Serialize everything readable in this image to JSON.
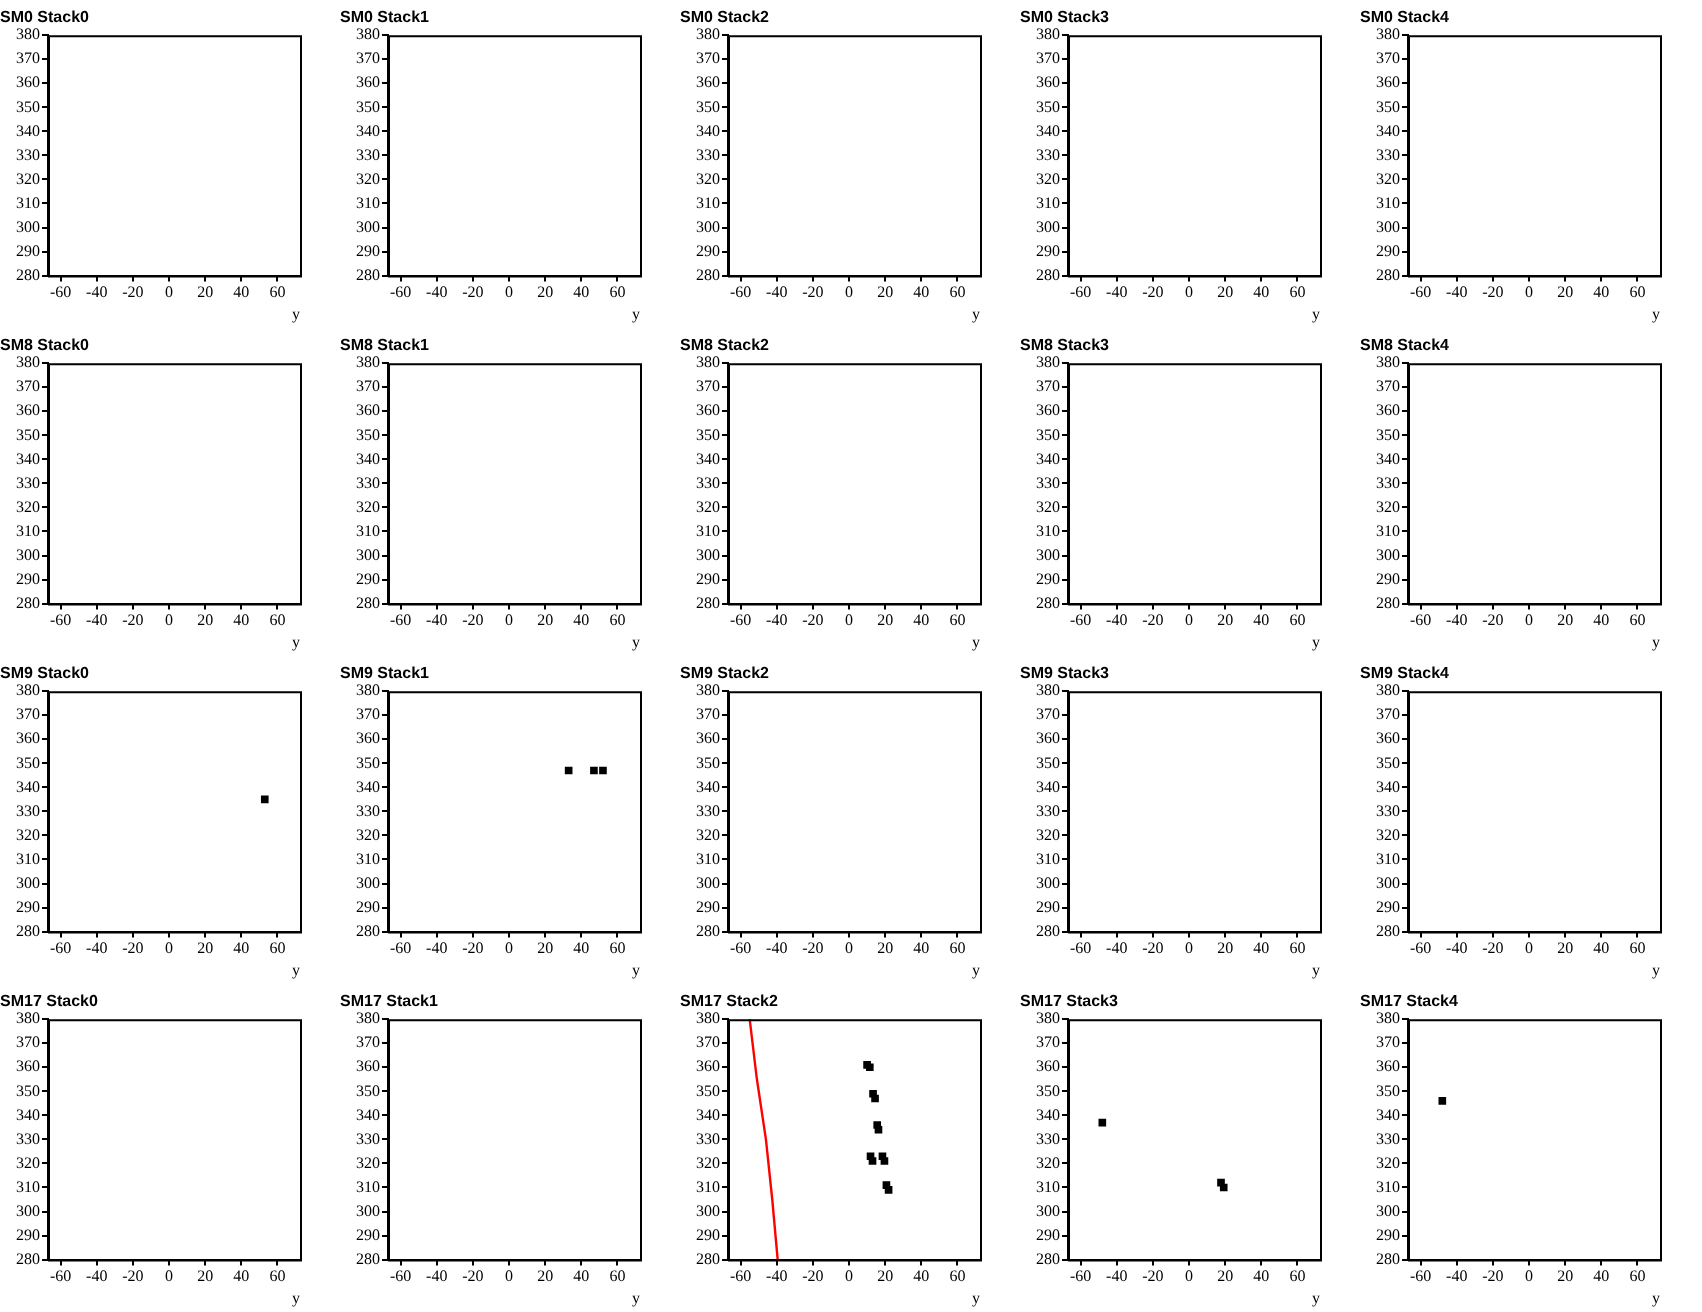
{
  "chart_data": [
    {
      "type": "scatter",
      "title": "SM0 Stack0",
      "xlabel": "y",
      "xlim": [
        -67,
        72.5
      ],
      "xticks": [
        -60,
        -40,
        -20,
        0,
        20,
        40,
        60
      ],
      "ylim": [
        280,
        380
      ],
      "yticks": [
        280,
        290,
        300,
        310,
        320,
        330,
        340,
        350,
        360,
        370,
        380
      ]
    },
    {
      "type": "scatter",
      "title": "SM0 Stack1",
      "xlabel": "y",
      "xlim": [
        -67,
        72.5
      ],
      "xticks": [
        -60,
        -40,
        -20,
        0,
        20,
        40,
        60
      ],
      "ylim": [
        280,
        380
      ],
      "yticks": [
        280,
        290,
        300,
        310,
        320,
        330,
        340,
        350,
        360,
        370,
        380
      ]
    },
    {
      "type": "scatter",
      "title": "SM0 Stack2",
      "xlabel": "y",
      "xlim": [
        -67,
        72.5
      ],
      "xticks": [
        -60,
        -40,
        -20,
        0,
        20,
        40,
        60
      ],
      "ylim": [
        280,
        380
      ],
      "yticks": [
        280,
        290,
        300,
        310,
        320,
        330,
        340,
        350,
        360,
        370,
        380
      ]
    },
    {
      "type": "scatter",
      "title": "SM0 Stack3",
      "xlabel": "y",
      "xlim": [
        -67,
        72.5
      ],
      "xticks": [
        -60,
        -40,
        -20,
        0,
        20,
        40,
        60
      ],
      "ylim": [
        280,
        380
      ],
      "yticks": [
        280,
        290,
        300,
        310,
        320,
        330,
        340,
        350,
        360,
        370,
        380
      ]
    },
    {
      "type": "scatter",
      "title": "SM0 Stack4",
      "xlabel": "y",
      "xlim": [
        -67,
        72.5
      ],
      "xticks": [
        -60,
        -40,
        -20,
        0,
        20,
        40,
        60
      ],
      "ylim": [
        280,
        380
      ],
      "yticks": [
        280,
        290,
        300,
        310,
        320,
        330,
        340,
        350,
        360,
        370,
        380
      ]
    },
    {
      "type": "scatter",
      "title": "SM8 Stack0",
      "xlabel": "y",
      "xlim": [
        -67,
        72.5
      ],
      "xticks": [
        -60,
        -40,
        -20,
        0,
        20,
        40,
        60
      ],
      "ylim": [
        280,
        380
      ],
      "yticks": [
        280,
        290,
        300,
        310,
        320,
        330,
        340,
        350,
        360,
        370,
        380
      ]
    },
    {
      "type": "scatter",
      "title": "SM8 Stack1",
      "xlabel": "y",
      "xlim": [
        -67,
        72.5
      ],
      "xticks": [
        -60,
        -40,
        -20,
        0,
        20,
        40,
        60
      ],
      "ylim": [
        280,
        380
      ],
      "yticks": [
        280,
        290,
        300,
        310,
        320,
        330,
        340,
        350,
        360,
        370,
        380
      ]
    },
    {
      "type": "scatter",
      "title": "SM8 Stack2",
      "xlabel": "y",
      "xlim": [
        -67,
        72.5
      ],
      "xticks": [
        -60,
        -40,
        -20,
        0,
        20,
        40,
        60
      ],
      "ylim": [
        280,
        380
      ],
      "yticks": [
        280,
        290,
        300,
        310,
        320,
        330,
        340,
        350,
        360,
        370,
        380
      ]
    },
    {
      "type": "scatter",
      "title": "SM8 Stack3",
      "xlabel": "y",
      "xlim": [
        -67,
        72.5
      ],
      "xticks": [
        -60,
        -40,
        -20,
        0,
        20,
        40,
        60
      ],
      "ylim": [
        280,
        380
      ],
      "yticks": [
        280,
        290,
        300,
        310,
        320,
        330,
        340,
        350,
        360,
        370,
        380
      ]
    },
    {
      "type": "scatter",
      "title": "SM8 Stack4",
      "xlabel": "y",
      "xlim": [
        -67,
        72.5
      ],
      "xticks": [
        -60,
        -40,
        -20,
        0,
        20,
        40,
        60
      ],
      "ylim": [
        280,
        380
      ],
      "yticks": [
        280,
        290,
        300,
        310,
        320,
        330,
        340,
        350,
        360,
        370,
        380
      ]
    },
    {
      "type": "scatter",
      "title": "SM9 Stack0",
      "xlabel": "y",
      "xlim": [
        -67,
        72.5
      ],
      "xticks": [
        -60,
        -40,
        -20,
        0,
        20,
        40,
        60
      ],
      "ylim": [
        280,
        380
      ],
      "yticks": [
        280,
        290,
        300,
        310,
        320,
        330,
        340,
        350,
        360,
        370,
        380
      ],
      "marker": "square",
      "series": [
        {
          "color": "#000000",
          "x": [
            53
          ],
          "values": [
            335
          ]
        }
      ]
    },
    {
      "type": "scatter",
      "title": "SM9 Stack1",
      "xlabel": "y",
      "xlim": [
        -67,
        72.5
      ],
      "xticks": [
        -60,
        -40,
        -20,
        0,
        20,
        40,
        60
      ],
      "ylim": [
        280,
        380
      ],
      "yticks": [
        280,
        290,
        300,
        310,
        320,
        330,
        340,
        350,
        360,
        370,
        380
      ],
      "marker": "square",
      "series": [
        {
          "color": "#000000",
          "x": [
            33,
            47,
            52
          ],
          "values": [
            347,
            347,
            347
          ]
        }
      ]
    },
    {
      "type": "scatter",
      "title": "SM9 Stack2",
      "xlabel": "y",
      "xlim": [
        -67,
        72.5
      ],
      "xticks": [
        -60,
        -40,
        -20,
        0,
        20,
        40,
        60
      ],
      "ylim": [
        280,
        380
      ],
      "yticks": [
        280,
        290,
        300,
        310,
        320,
        330,
        340,
        350,
        360,
        370,
        380
      ]
    },
    {
      "type": "scatter",
      "title": "SM9 Stack3",
      "xlabel": "y",
      "xlim": [
        -67,
        72.5
      ],
      "xticks": [
        -60,
        -40,
        -20,
        0,
        20,
        40,
        60
      ],
      "ylim": [
        280,
        380
      ],
      "yticks": [
        280,
        290,
        300,
        310,
        320,
        330,
        340,
        350,
        360,
        370,
        380
      ]
    },
    {
      "type": "scatter",
      "title": "SM9 Stack4",
      "xlabel": "y",
      "xlim": [
        -67,
        72.5
      ],
      "xticks": [
        -60,
        -40,
        -20,
        0,
        20,
        40,
        60
      ],
      "ylim": [
        280,
        380
      ],
      "yticks": [
        280,
        290,
        300,
        310,
        320,
        330,
        340,
        350,
        360,
        370,
        380
      ]
    },
    {
      "type": "scatter",
      "title": "SM17 Stack0",
      "xlabel": "y",
      "xlim": [
        -67,
        72.5
      ],
      "xticks": [
        -60,
        -40,
        -20,
        0,
        20,
        40,
        60
      ],
      "ylim": [
        280,
        380
      ],
      "yticks": [
        280,
        290,
        300,
        310,
        320,
        330,
        340,
        350,
        360,
        370,
        380
      ]
    },
    {
      "type": "scatter",
      "title": "SM17 Stack1",
      "xlabel": "y",
      "xlim": [
        -67,
        72.5
      ],
      "xticks": [
        -60,
        -40,
        -20,
        0,
        20,
        40,
        60
      ],
      "ylim": [
        280,
        380
      ],
      "yticks": [
        280,
        290,
        300,
        310,
        320,
        330,
        340,
        350,
        360,
        370,
        380
      ]
    },
    {
      "type": "scatter",
      "title": "SM17 Stack2",
      "xlabel": "y",
      "xlim": [
        -67,
        72.5
      ],
      "xticks": [
        -60,
        -40,
        -20,
        0,
        20,
        40,
        60
      ],
      "ylim": [
        280,
        380
      ],
      "yticks": [
        280,
        290,
        300,
        310,
        320,
        330,
        340,
        350,
        360,
        370,
        380
      ],
      "marker": "square",
      "series": [
        {
          "type": "line",
          "marker": "none",
          "color": "#ff0000",
          "x": [
            -55,
            -51,
            -46,
            -42.5,
            -39.5
          ],
          "values": [
            380,
            355,
            330,
            305,
            280
          ]
        },
        {
          "color": "#000000",
          "x": [
            10,
            11.5,
            13.3,
            14.4,
            15.6,
            16.3,
            11.9,
            13,
            18.5,
            19.6,
            20.7,
            21.9
          ],
          "values": [
            361,
            360,
            349,
            347,
            336,
            334,
            323,
            321,
            323,
            321,
            311,
            309
          ]
        }
      ]
    },
    {
      "type": "scatter",
      "title": "SM17 Stack3",
      "xlabel": "y",
      "xlim": [
        -67,
        72.5
      ],
      "xticks": [
        -60,
        -40,
        -20,
        0,
        20,
        40,
        60
      ],
      "ylim": [
        280,
        380
      ],
      "yticks": [
        280,
        290,
        300,
        310,
        320,
        330,
        340,
        350,
        360,
        370,
        380
      ],
      "marker": "square",
      "series": [
        {
          "color": "#000000",
          "x": [
            -48,
            17.7,
            19.2
          ],
          "values": [
            337,
            312,
            310
          ]
        }
      ]
    },
    {
      "type": "scatter",
      "title": "SM17 Stack4",
      "xlabel": "y",
      "xlim": [
        -67,
        72.5
      ],
      "xticks": [
        -60,
        -40,
        -20,
        0,
        20,
        40,
        60
      ],
      "ylim": [
        280,
        380
      ],
      "yticks": [
        280,
        290,
        300,
        310,
        320,
        330,
        340,
        350,
        360,
        370,
        380
      ],
      "marker": "square",
      "series": [
        {
          "color": "#000000",
          "x": [
            -48
          ],
          "values": [
            346
          ]
        }
      ]
    }
  ]
}
